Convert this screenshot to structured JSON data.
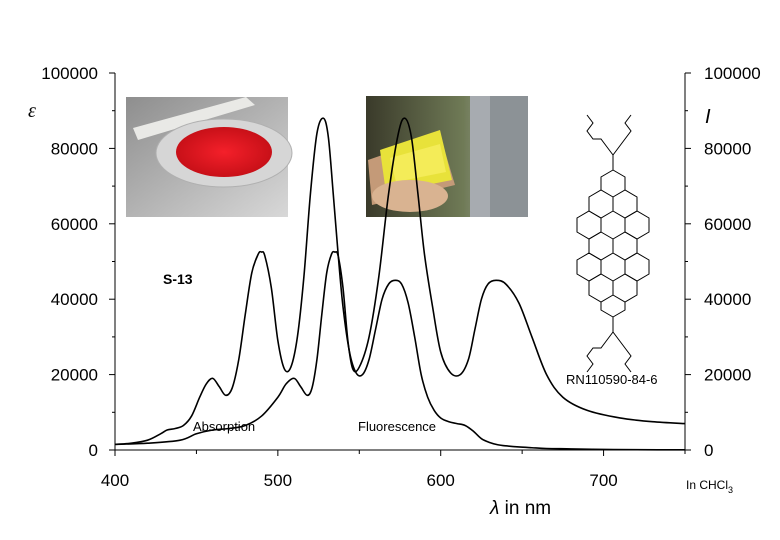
{
  "chart_data": {
    "type": "line",
    "xlabel_symbol": "λ",
    "xlabel_rest": " in nm",
    "ylabel_left": "ε",
    "ylabel_right": "I",
    "xlim": [
      400,
      750
    ],
    "ylim": [
      0,
      100000
    ],
    "x_ticks": [
      400,
      500,
      600,
      700
    ],
    "y_ticks": [
      0,
      20000,
      40000,
      60000,
      80000,
      100000
    ],
    "grid": false,
    "compound_label": "S-13",
    "registry_number": "RN110590-84-6",
    "solvent_label_main": "In CHCl",
    "solvent_label_sub": "3",
    "series": [
      {
        "name": "Absorption",
        "x": [
          400,
          410,
          420,
          428,
          432,
          437,
          442,
          447,
          452,
          456,
          460,
          464,
          468,
          472,
          476,
          480,
          484,
          488,
          490,
          492,
          496,
          500,
          504,
          508,
          512,
          516,
          520,
          524,
          528,
          531,
          534,
          537,
          540,
          544,
          548,
          552,
          556,
          560,
          564,
          568,
          572,
          576,
          580,
          584,
          588,
          592,
          596,
          600,
          605,
          610,
          615,
          620,
          625,
          630,
          635,
          640,
          648,
          656,
          665,
          680,
          700,
          720,
          750
        ],
        "y": [
          1500,
          1800,
          2600,
          4300,
          5300,
          5700,
          6500,
          9000,
          14000,
          17500,
          19000,
          16800,
          14500,
          16500,
          24000,
          36000,
          47000,
          52000,
          52500,
          51500,
          43000,
          29000,
          21500,
          22000,
          30000,
          46000,
          68000,
          84000,
          88000,
          83000,
          68000,
          52000,
          38000,
          26000,
          20500,
          20000,
          24000,
          32000,
          40000,
          44000,
          45000,
          44000,
          39000,
          30000,
          20000,
          14000,
          10500,
          8500,
          7500,
          7000,
          6500,
          5000,
          3000,
          2000,
          1400,
          1100,
          800,
          600,
          400,
          300,
          150,
          80,
          40
        ]
      },
      {
        "name": "Fluorescence",
        "x": [
          400,
          420,
          440,
          450,
          460,
          470,
          480,
          490,
          500,
          505,
          510,
          514,
          518,
          521,
          524,
          527,
          530,
          533,
          535,
          537,
          540,
          543,
          546,
          550,
          556,
          562,
          568,
          574,
          578,
          582,
          586,
          590,
          595,
          600,
          606,
          612,
          617,
          621,
          625,
          629,
          634,
          640,
          648,
          656,
          665,
          675,
          690,
          710,
          730,
          750
        ],
        "y": [
          1500,
          1800,
          2600,
          4300,
          5300,
          5700,
          6500,
          9000,
          14000,
          17500,
          19000,
          16800,
          14500,
          16500,
          24000,
          36000,
          47000,
          52000,
          52500,
          51500,
          43000,
          29000,
          21500,
          22000,
          30000,
          46000,
          68000,
          84000,
          88000,
          83000,
          68000,
          52000,
          38000,
          26000,
          20500,
          20000,
          24000,
          32000,
          40000,
          44000,
          45000,
          44000,
          39000,
          30000,
          20000,
          14000,
          10500,
          8500,
          7500,
          7000
        ]
      }
    ]
  }
}
